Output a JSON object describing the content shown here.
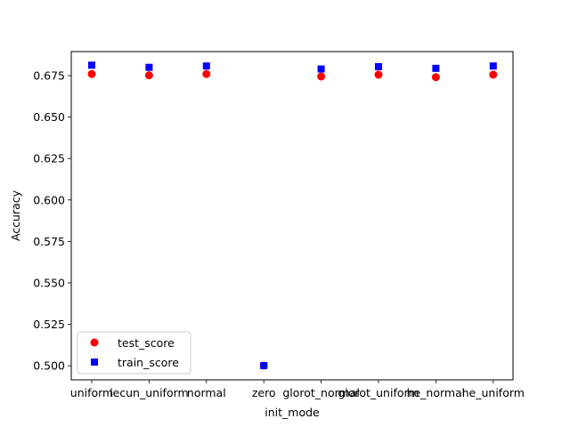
{
  "chart_data": {
    "type": "scatter",
    "categories": [
      "uniform",
      "lecun_uniform",
      "normal",
      "zero",
      "glorot_normal",
      "glorot_uniform",
      "he_normal",
      "he_uniform"
    ],
    "series": [
      {
        "name": "test_score",
        "marker": "circle",
        "color": "#ff0000",
        "values": [
          0.676,
          0.6752,
          0.676,
          0.5001,
          0.6745,
          0.6756,
          0.6741,
          0.6756
        ]
      },
      {
        "name": "train_score",
        "marker": "square",
        "color": "#0000ff",
        "values": [
          0.6813,
          0.68,
          0.6808,
          0.5001,
          0.679,
          0.6804,
          0.6794,
          0.6808
        ]
      }
    ],
    "title": "",
    "xlabel": "init_mode",
    "ylabel": "Accuracy",
    "ylim": [
      0.4915,
      0.6895
    ],
    "yticks": [
      "0.500",
      "0.525",
      "0.550",
      "0.575",
      "0.600",
      "0.625",
      "0.650",
      "0.675"
    ],
    "legend_position": "lower-left",
    "grid": false
  }
}
